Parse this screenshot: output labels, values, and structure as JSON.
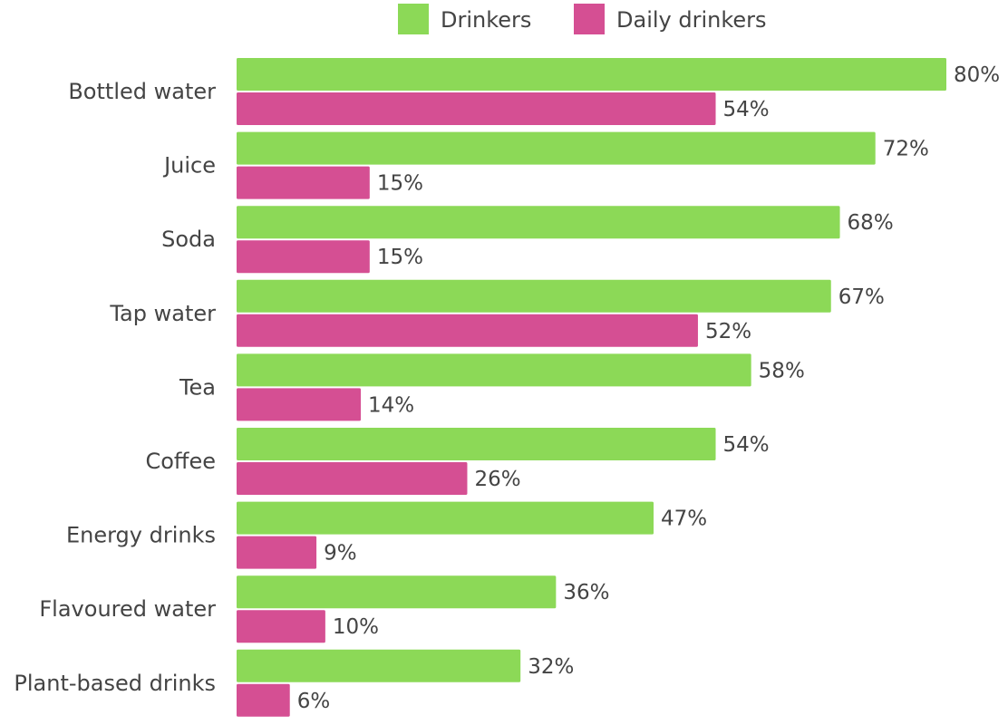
{
  "chart_data": {
    "type": "bar",
    "orientation": "horizontal",
    "categories": [
      "Bottled water",
      "Juice",
      "Soda",
      "Tap water",
      "Tea",
      "Coffee",
      "Energy drinks",
      "Flavoured water",
      "Plant-based drinks"
    ],
    "series": [
      {
        "name": "Drinkers",
        "color": "#8cd957",
        "values": [
          80,
          72,
          68,
          67,
          58,
          54,
          47,
          36,
          32
        ]
      },
      {
        "name": "Daily drinkers",
        "color": "#d54f93",
        "values": [
          54,
          15,
          15,
          52,
          14,
          26,
          9,
          10,
          6
        ]
      }
    ],
    "value_suffix": "%",
    "xlim": [
      0,
      80
    ],
    "grid": false,
    "legend_position": "top",
    "data_labels": true
  }
}
